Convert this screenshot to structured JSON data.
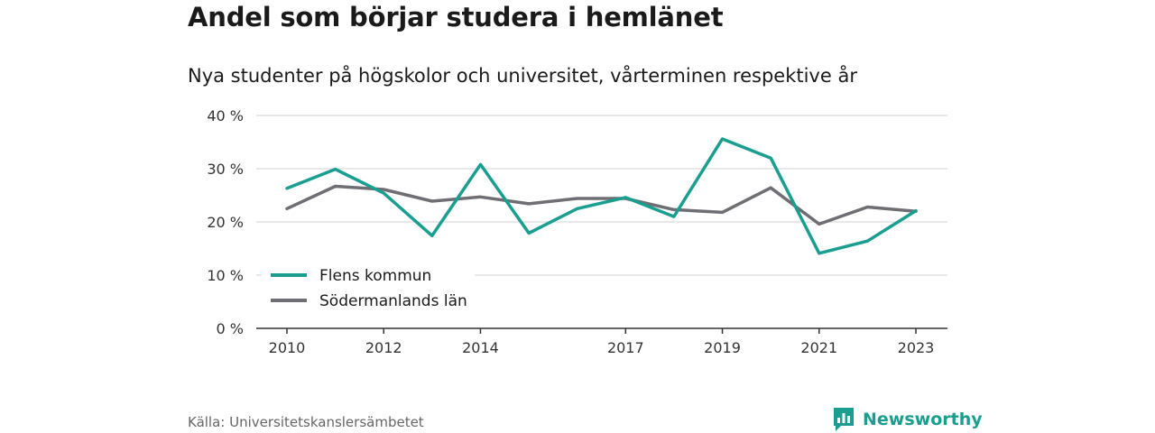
{
  "title": "Andel som börjar studera i hemlänet",
  "subtitle": "Nya studenter på högskolor och universitet, vårterminen respektive år",
  "source": "Källa: Universitetskanslersämbetet",
  "brand": "Newsworthy",
  "colors": {
    "flen": "#1a9e8f",
    "sodermanland": "#6e6e74",
    "grid": "#d9d9d9",
    "axis": "#333333"
  },
  "chart_data": {
    "type": "line",
    "x": [
      2010,
      2011,
      2012,
      2013,
      2014,
      2015,
      2016,
      2017,
      2018,
      2019,
      2020,
      2021,
      2022,
      2023
    ],
    "x_tick_values": [
      2010,
      2012,
      2014,
      2017,
      2019,
      2021,
      2023
    ],
    "x_tick_labels": [
      "2010",
      "2012",
      "2014",
      "2017",
      "2019",
      "2021",
      "2023"
    ],
    "ylim": [
      0,
      40
    ],
    "y_tick_values": [
      0,
      10,
      20,
      30,
      40
    ],
    "y_tick_labels": [
      "0 %",
      "10 %",
      "20 %",
      "30 %",
      "40 %"
    ],
    "grid": true,
    "legend_position": "bottom-left",
    "series": [
      {
        "name": "Flens kommun",
        "values": [
          26.3,
          29.9,
          25.4,
          17.4,
          30.8,
          17.9,
          22.5,
          24.6,
          21.0,
          35.6,
          32.0,
          14.1,
          16.4,
          22.1
        ]
      },
      {
        "name": "Södermanlands län",
        "values": [
          22.5,
          26.7,
          26.1,
          23.9,
          24.7,
          23.4,
          24.4,
          24.4,
          22.3,
          21.8,
          26.4,
          19.6,
          22.8,
          22.0
        ]
      }
    ]
  }
}
